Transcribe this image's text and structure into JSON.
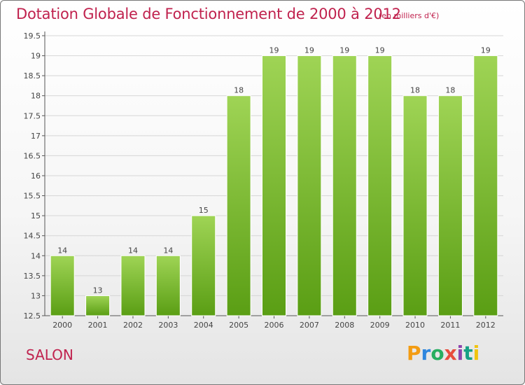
{
  "header": {
    "title": "Dotation Globale de Fonctionnement de 2000 à 2012",
    "unit": "(en milliers d'€)"
  },
  "footer": {
    "commune": "SALON",
    "brand": "Proxiti"
  },
  "colors": {
    "title": "#c0224e",
    "bar_top": "#9fd455",
    "bar_bottom": "#5a9e14"
  },
  "chart_data": {
    "type": "bar",
    "title": "Dotation Globale de Fonctionnement de 2000 à 2012",
    "subtitle": "(en milliers d'€)",
    "xlabel": "",
    "ylabel": "",
    "categories": [
      "2000",
      "2001",
      "2002",
      "2003",
      "2004",
      "2005",
      "2006",
      "2007",
      "2008",
      "2009",
      "2010",
      "2011",
      "2012"
    ],
    "values": [
      14,
      13,
      14,
      14,
      15,
      18,
      19,
      19,
      19,
      19,
      18,
      18,
      19
    ],
    "value_labels": [
      "14",
      "13",
      "14",
      "14",
      "15",
      "18",
      "19",
      "19",
      "19",
      "19",
      "18",
      "18",
      "19"
    ],
    "ylim": [
      12.5,
      19.5
    ],
    "yticks": [
      "12.5",
      "13",
      "13.5",
      "14",
      "14.5",
      "15",
      "15.5",
      "16",
      "16.5",
      "17",
      "17.5",
      "18",
      "18.5",
      "19",
      "19.5"
    ],
    "grid": true
  }
}
